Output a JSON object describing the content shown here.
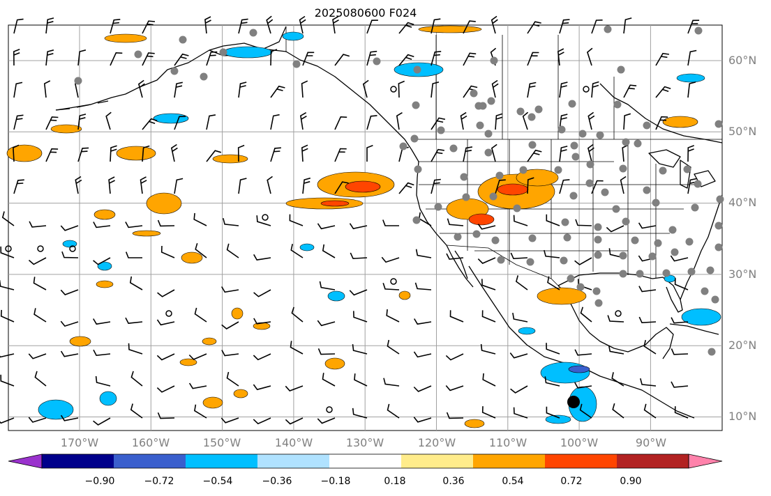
{
  "title": "2025080600 F024",
  "map": {
    "projection": "plate-carree",
    "lon_range": [
      -180,
      -80
    ],
    "lat_range": [
      8,
      65
    ],
    "gridlines": true,
    "lat_labels": [
      "60°N",
      "50°N",
      "40°N",
      "30°N",
      "20°N",
      "10°N"
    ],
    "lon_labels": [
      "170°W",
      "160°W",
      "150°W",
      "140°W",
      "130°W",
      "120°W",
      "110°W",
      "100°W",
      "90°W"
    ],
    "label_color": "#808080"
  },
  "colorbar": {
    "orientation": "horizontal",
    "extend": "both",
    "tick_labels": [
      "−0.90",
      "−0.72",
      "−0.54",
      "−0.36",
      "−0.18",
      "0.18",
      "0.36",
      "0.54",
      "0.72",
      "0.90"
    ],
    "colors": [
      "#9a32cd",
      "#00008b",
      "#3a5fcd",
      "#00bfff",
      "#b0e2ff",
      "#ffffff",
      "#ffec8b",
      "#ffa500",
      "#ff4500",
      "#b22222",
      "#ff82ab"
    ]
  }
}
